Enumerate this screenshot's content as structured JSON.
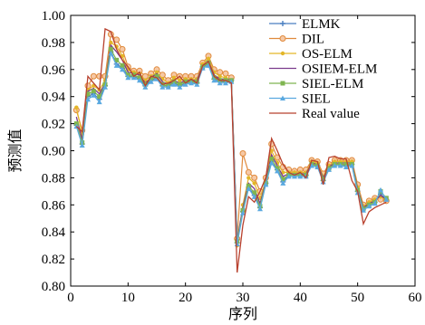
{
  "chart_data": {
    "type": "line",
    "title": "",
    "xlabel": "序列",
    "ylabel": "预测值",
    "xlim": [
      0,
      60
    ],
    "ylim": [
      0.8,
      1.0
    ],
    "xticks": [
      "0",
      "10",
      "20",
      "30",
      "40",
      "50",
      "60"
    ],
    "yticks": [
      "0.80",
      "0.82",
      "0.84",
      "0.86",
      "0.88",
      "0.90",
      "0.92",
      "0.94",
      "0.96",
      "0.98",
      "1.00"
    ],
    "grid": false,
    "legend_position": "top-right",
    "x": [
      1,
      2,
      3,
      4,
      5,
      6,
      7,
      8,
      9,
      10,
      11,
      12,
      13,
      14,
      15,
      16,
      17,
      18,
      19,
      20,
      21,
      22,
      23,
      24,
      25,
      26,
      27,
      28,
      29,
      30,
      31,
      32,
      33,
      34,
      35,
      36,
      37,
      38,
      39,
      40,
      41,
      42,
      43,
      44,
      45,
      46,
      47,
      48,
      49,
      50,
      51,
      52,
      53,
      54,
      55
    ],
    "series": [
      {
        "name": "ELMK",
        "color": "#4a7fc1",
        "marker": "plus",
        "values": [
          0.919,
          0.905,
          0.94,
          0.942,
          0.938,
          0.948,
          0.973,
          0.964,
          0.961,
          0.955,
          0.955,
          0.953,
          0.948,
          0.952,
          0.954,
          0.948,
          0.948,
          0.95,
          0.948,
          0.95,
          0.951,
          0.95,
          0.962,
          0.964,
          0.953,
          0.951,
          0.951,
          0.952,
          0.832,
          0.855,
          0.873,
          0.867,
          0.858,
          0.876,
          0.892,
          0.886,
          0.877,
          0.882,
          0.882,
          0.882,
          0.882,
          0.89,
          0.889,
          0.878,
          0.887,
          0.89,
          0.89,
          0.889,
          0.89,
          0.87,
          0.857,
          0.86,
          0.862,
          0.868,
          0.864
        ]
      },
      {
        "name": "DIL",
        "color": "#e08a3c",
        "marker": "circle",
        "values": [
          0.93,
          0.915,
          0.948,
          0.955,
          0.955,
          0.955,
          0.986,
          0.982,
          0.975,
          0.962,
          0.959,
          0.959,
          0.955,
          0.957,
          0.96,
          0.956,
          0.952,
          0.956,
          0.955,
          0.955,
          0.955,
          0.955,
          0.965,
          0.97,
          0.96,
          0.958,
          0.957,
          0.954,
          0.835,
          0.898,
          0.884,
          0.88,
          0.87,
          0.88,
          0.905,
          0.895,
          0.888,
          0.886,
          0.885,
          0.886,
          0.886,
          0.893,
          0.892,
          0.883,
          0.89,
          0.893,
          0.893,
          0.893,
          0.893,
          0.875,
          0.86,
          0.863,
          0.865,
          0.864,
          0.863
        ]
      },
      {
        "name": "OS-ELM",
        "color": "#e3b628",
        "marker": "dot",
        "values": [
          0.932,
          0.912,
          0.945,
          0.948,
          0.945,
          0.952,
          0.98,
          0.977,
          0.97,
          0.96,
          0.958,
          0.957,
          0.952,
          0.955,
          0.958,
          0.953,
          0.95,
          0.954,
          0.952,
          0.953,
          0.953,
          0.953,
          0.964,
          0.968,
          0.958,
          0.955,
          0.954,
          0.952,
          0.83,
          0.86,
          0.88,
          0.876,
          0.865,
          0.878,
          0.9,
          0.891,
          0.884,
          0.884,
          0.884,
          0.884,
          0.884,
          0.892,
          0.891,
          0.881,
          0.889,
          0.892,
          0.892,
          0.892,
          0.892,
          0.873,
          0.859,
          0.862,
          0.864,
          0.866,
          0.864
        ]
      },
      {
        "name": "OSIEM-ELM",
        "color": "#7a3b8c",
        "marker": "none",
        "values": [
          0.925,
          0.908,
          0.944,
          0.946,
          0.942,
          0.95,
          0.978,
          0.973,
          0.967,
          0.958,
          0.957,
          0.956,
          0.95,
          0.954,
          0.957,
          0.951,
          0.949,
          0.952,
          0.95,
          0.952,
          0.952,
          0.952,
          0.963,
          0.966,
          0.956,
          0.953,
          0.953,
          0.952,
          0.834,
          0.858,
          0.876,
          0.872,
          0.861,
          0.877,
          0.897,
          0.889,
          0.881,
          0.883,
          0.883,
          0.883,
          0.883,
          0.891,
          0.89,
          0.88,
          0.888,
          0.891,
          0.891,
          0.891,
          0.891,
          0.872,
          0.858,
          0.861,
          0.863,
          0.867,
          0.864
        ]
      },
      {
        "name": "SIEL-ELM",
        "color": "#7fb550",
        "marker": "square",
        "values": [
          0.92,
          0.906,
          0.942,
          0.944,
          0.94,
          0.949,
          0.975,
          0.967,
          0.963,
          0.956,
          0.956,
          0.954,
          0.949,
          0.953,
          0.955,
          0.949,
          0.948,
          0.951,
          0.949,
          0.951,
          0.951,
          0.951,
          0.962,
          0.965,
          0.954,
          0.952,
          0.952,
          0.952,
          0.833,
          0.856,
          0.874,
          0.869,
          0.859,
          0.876,
          0.894,
          0.887,
          0.879,
          0.882,
          0.882,
          0.882,
          0.882,
          0.89,
          0.889,
          0.879,
          0.887,
          0.89,
          0.89,
          0.89,
          0.89,
          0.871,
          0.857,
          0.86,
          0.862,
          0.87,
          0.865
        ]
      },
      {
        "name": "SIEL",
        "color": "#5aa9e0",
        "marker": "triangle",
        "values": [
          0.918,
          0.904,
          0.938,
          0.941,
          0.936,
          0.947,
          0.972,
          0.963,
          0.96,
          0.954,
          0.954,
          0.952,
          0.947,
          0.951,
          0.953,
          0.947,
          0.947,
          0.949,
          0.947,
          0.949,
          0.95,
          0.949,
          0.961,
          0.963,
          0.952,
          0.95,
          0.95,
          0.951,
          0.831,
          0.854,
          0.872,
          0.866,
          0.857,
          0.875,
          0.891,
          0.885,
          0.876,
          0.881,
          0.881,
          0.881,
          0.881,
          0.889,
          0.888,
          0.877,
          0.886,
          0.889,
          0.889,
          0.888,
          0.889,
          0.869,
          0.856,
          0.859,
          0.861,
          0.871,
          0.864
        ]
      },
      {
        "name": "Real value",
        "color": "#b8412e",
        "marker": "none",
        "values": [
          0.918,
          0.914,
          0.955,
          0.95,
          0.945,
          0.99,
          0.988,
          0.975,
          0.967,
          0.962,
          0.955,
          0.958,
          0.948,
          0.955,
          0.954,
          0.949,
          0.95,
          0.952,
          0.955,
          0.95,
          0.953,
          0.95,
          0.963,
          0.966,
          0.955,
          0.952,
          0.952,
          0.95,
          0.81,
          0.845,
          0.866,
          0.862,
          0.87,
          0.88,
          0.909,
          0.9,
          0.89,
          0.884,
          0.882,
          0.884,
          0.88,
          0.893,
          0.892,
          0.875,
          0.895,
          0.896,
          0.894,
          0.894,
          0.878,
          0.87,
          0.846,
          0.855,
          0.858,
          0.86,
          0.862
        ]
      }
    ]
  }
}
